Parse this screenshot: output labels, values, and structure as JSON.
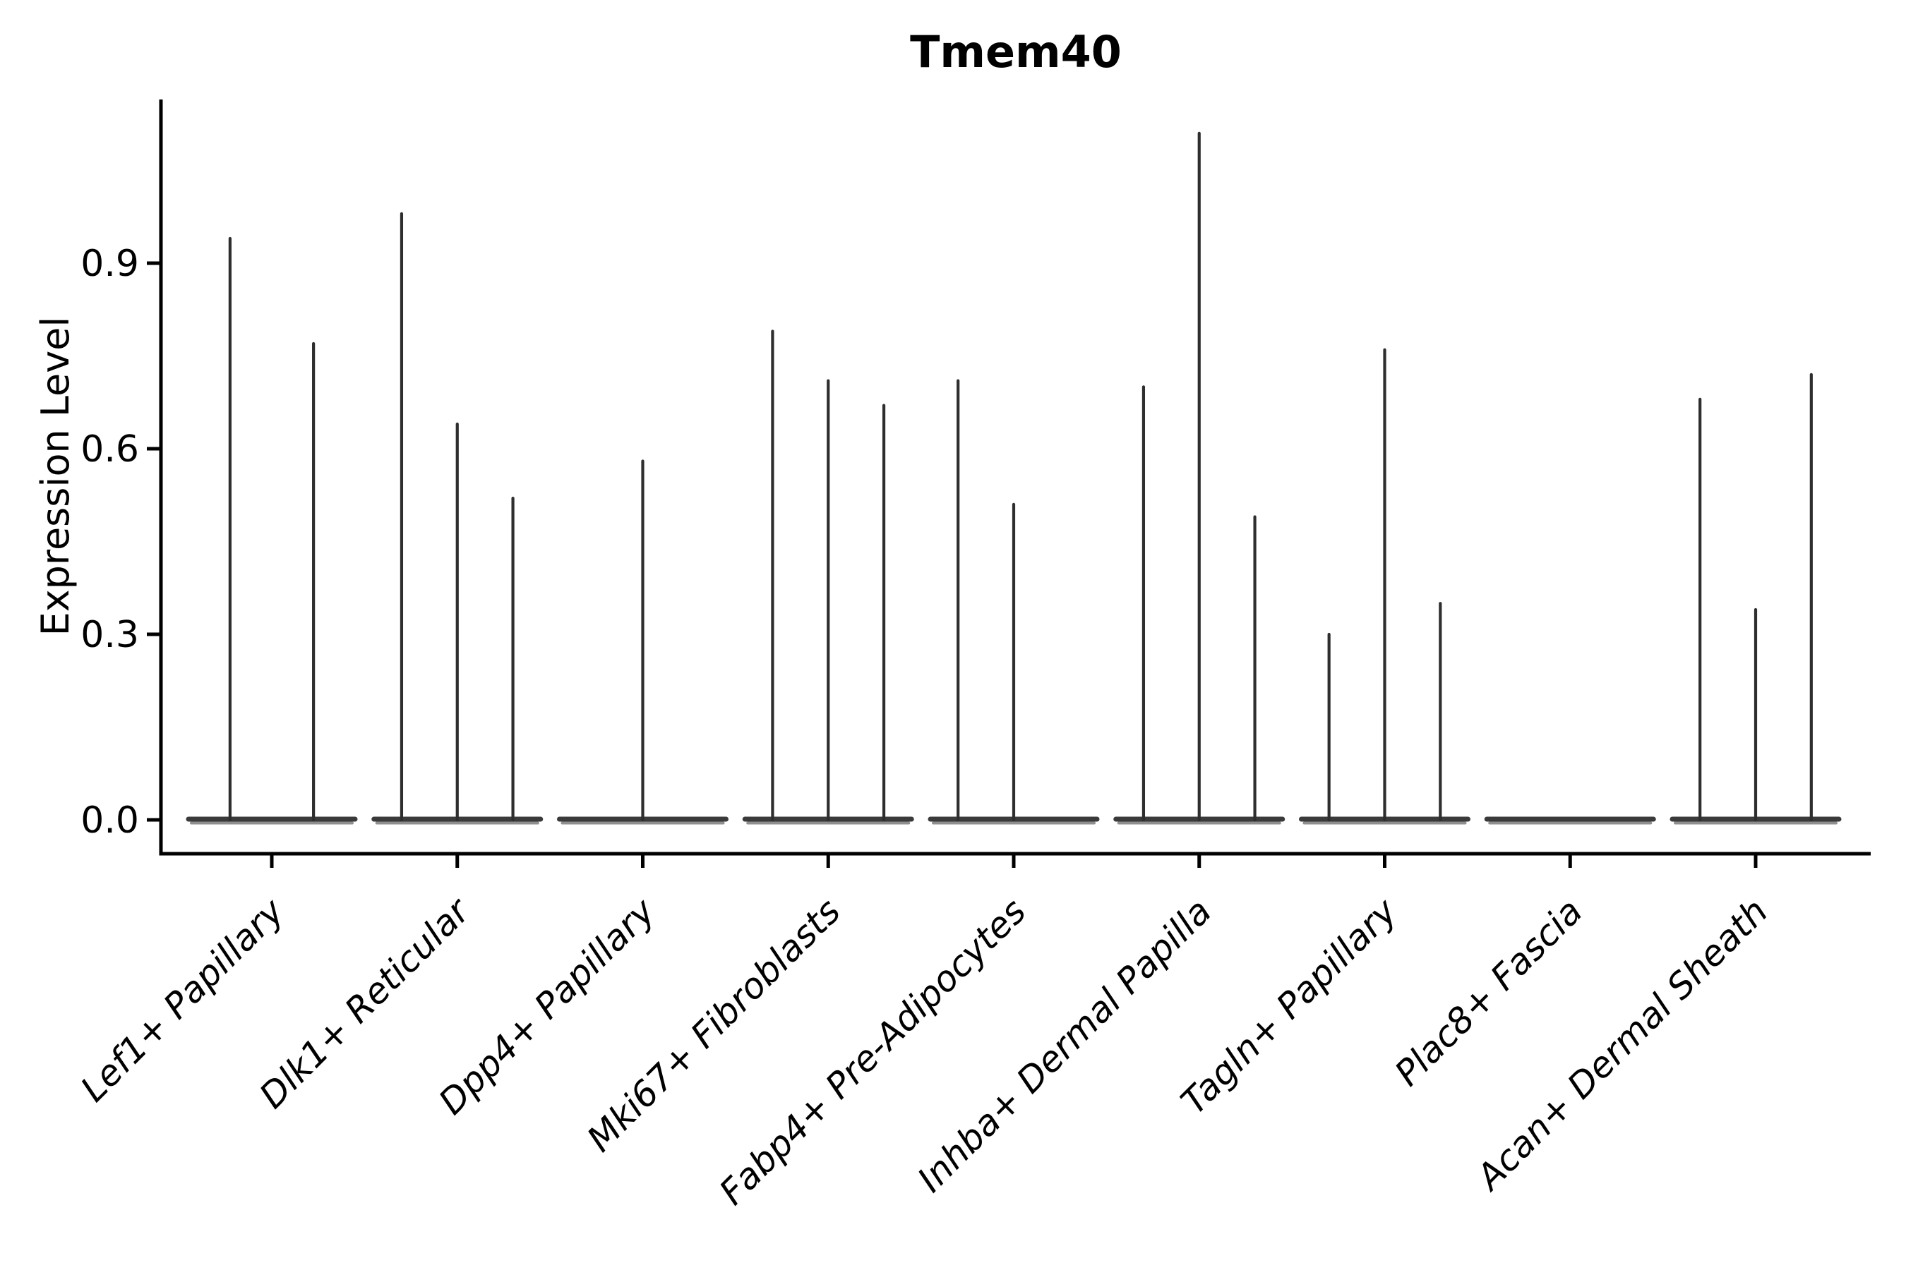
{
  "figure": {
    "background": "#ffffff"
  },
  "colors": {
    "axis": "#000000",
    "text": "#000000",
    "violin_stroke": "#2e2e2e",
    "violin_base": "#3a3a3a",
    "violin_base_edge": "#8f8f8f"
  },
  "chart_data": {
    "type": "violin",
    "title": "Tmem40",
    "xlabel": "",
    "ylabel": "Expression Level",
    "ylim": [
      0,
      1.15
    ],
    "yticks": [
      0.0,
      0.3,
      0.6,
      0.9
    ],
    "ytick_labels": [
      "0.0",
      "0.3",
      "0.6",
      "0.9"
    ],
    "grid": false,
    "legend": "none",
    "note": "Each category shows up to three ultra-thin violins: a flat density blob at expression 0 plus a vertical spike reaching the maximum expression value. Spike dx is the offset from the category center as a fraction of category spacing; max is the spike top in Expression Level units.",
    "categories": [
      "Lef1+ Papillary",
      "Dlk1+ Reticular",
      "Dpp4+ Papillary",
      "Mki67+ Fibroblasts",
      "Fabp4+ Pre-Adipocytes",
      "Inhba+ Dermal Papilla",
      "Tagln+ Papillary",
      "Plac8+ Fascia",
      "Acan+ Dermal Sheath"
    ],
    "violins": [
      {
        "category": "Lef1+ Papillary",
        "spikes": [
          {
            "dx": -0.225,
            "max": 0.94
          },
          {
            "dx": 0.225,
            "max": 0.77
          }
        ]
      },
      {
        "category": "Dlk1+ Reticular",
        "spikes": [
          {
            "dx": -0.3,
            "max": 0.98
          },
          {
            "dx": 0,
            "max": 0.64
          },
          {
            "dx": 0.3,
            "max": 0.52
          }
        ]
      },
      {
        "category": "Dpp4+ Papillary",
        "spikes": [
          {
            "dx": 0,
            "max": 0.58
          }
        ]
      },
      {
        "category": "Mki67+ Fibroblasts",
        "spikes": [
          {
            "dx": -0.3,
            "max": 0.79
          },
          {
            "dx": 0,
            "max": 0.71
          },
          {
            "dx": 0.3,
            "max": 0.67
          }
        ]
      },
      {
        "category": "Fabp4+ Pre-Adipocytes",
        "spikes": [
          {
            "dx": -0.3,
            "max": 0.71
          },
          {
            "dx": 0,
            "max": 0.51
          }
        ]
      },
      {
        "category": "Inhba+ Dermal Papilla",
        "spikes": [
          {
            "dx": -0.3,
            "max": 0.7
          },
          {
            "dx": 0,
            "max": 1.11
          },
          {
            "dx": 0.3,
            "max": 0.49
          }
        ]
      },
      {
        "category": "Tagln+ Papillary",
        "spikes": [
          {
            "dx": -0.3,
            "max": 0.3
          },
          {
            "dx": 0,
            "max": 0.76
          },
          {
            "dx": 0.3,
            "max": 0.35
          }
        ]
      },
      {
        "category": "Plac8+ Fascia",
        "spikes": []
      },
      {
        "category": "Acan+ Dermal Sheath",
        "spikes": [
          {
            "dx": -0.3,
            "max": 0.68
          },
          {
            "dx": 0,
            "max": 0.34
          },
          {
            "dx": 0.3,
            "max": 0.72
          }
        ]
      }
    ]
  }
}
